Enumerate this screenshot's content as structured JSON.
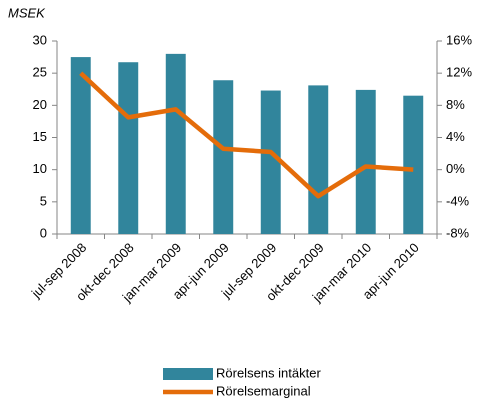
{
  "chart_data": {
    "type": "bar+line",
    "y_label": "MSEK",
    "categories": [
      "jul-sep 2008",
      "okt-dec 2008",
      "jan-mar 2009",
      "apr-jun 2009",
      "jul-sep 2009",
      "okt-dec 2009",
      "jan-mar 2010",
      "apr-jun 2010"
    ],
    "series": [
      {
        "name": "Rörelsens intäkter",
        "type": "bar",
        "color": "#31859c",
        "values": [
          27.5,
          26.7,
          28.0,
          23.9,
          22.3,
          23.1,
          22.4,
          21.5
        ]
      },
      {
        "name": "Rörelsemarginal",
        "type": "line",
        "axis": "y2",
        "color": "#e46c0a",
        "values": [
          12.0,
          6.5,
          7.5,
          2.6,
          2.2,
          -3.3,
          0.4,
          0.0
        ]
      }
    ],
    "ylim": [
      0,
      30
    ],
    "yticks": [
      0,
      5,
      10,
      15,
      20,
      25,
      30
    ],
    "y2lim": [
      -8,
      16
    ],
    "y2ticks": [
      {
        "value": -8,
        "label": "-8%"
      },
      {
        "value": -4,
        "label": "-4%"
      },
      {
        "value": 0,
        "label": "0%"
      },
      {
        "value": 4,
        "label": "4%"
      },
      {
        "value": 8,
        "label": "8%"
      },
      {
        "value": 12,
        "label": "12%"
      },
      {
        "value": 16,
        "label": "16%"
      }
    ],
    "grid": false,
    "legend": "bottom"
  }
}
